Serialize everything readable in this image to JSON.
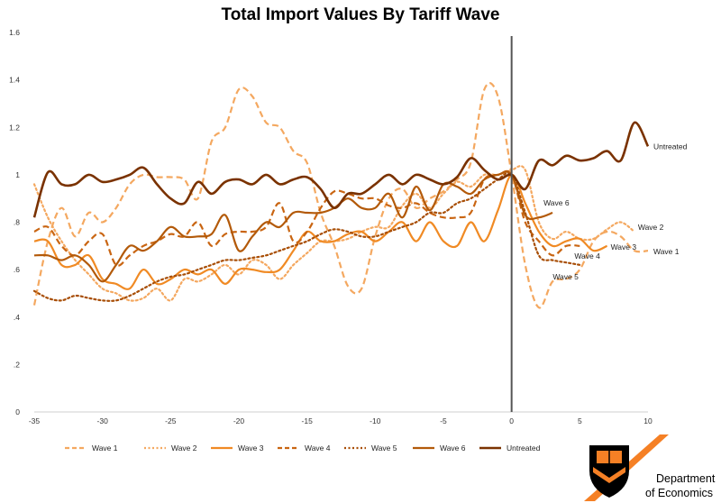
{
  "chart_data": {
    "type": "line",
    "title": "Total Import Values By Tariff Wave",
    "xlabel": "",
    "ylabel": "",
    "xlim": [
      -35,
      10
    ],
    "ylim": [
      0,
      1.6
    ],
    "xticks": [
      -35,
      -30,
      -25,
      -20,
      -15,
      -10,
      -5,
      0,
      5,
      10
    ],
    "yticks": [
      0,
      0.2,
      0.4,
      0.6,
      0.8,
      1,
      1.2,
      1.4,
      1.6
    ],
    "grid": false,
    "legend_position": "bottom",
    "vertical_marker_x": 0,
    "series": [
      {
        "name": "Wave 1",
        "color": "#f4a860",
        "dash": "dashed",
        "width": 2.2,
        "end_label": "Wave 1",
        "x": [
          -35,
          -34,
          -33,
          -32,
          -31,
          -30,
          -29,
          -28,
          -27,
          -26,
          -25,
          -24,
          -23,
          -22,
          -21,
          -20,
          -19,
          -18,
          -17,
          -16,
          -15,
          -14,
          -13,
          -12,
          -11,
          -10,
          -9,
          -8,
          -7,
          -6,
          -5,
          -4,
          -3,
          -2,
          -1,
          0,
          1,
          2,
          3,
          4,
          5,
          6,
          7,
          8,
          9,
          10
        ],
        "y": [
          0.45,
          0.72,
          0.86,
          0.74,
          0.84,
          0.8,
          0.86,
          0.96,
          1.0,
          0.99,
          0.99,
          0.98,
          0.9,
          1.14,
          1.2,
          1.36,
          1.33,
          1.22,
          1.2,
          1.1,
          1.05,
          0.84,
          0.7,
          0.53,
          0.52,
          0.74,
          0.9,
          0.94,
          0.86,
          0.9,
          0.93,
          0.98,
          1.05,
          1.36,
          1.33,
          1.0,
          0.62,
          0.44,
          0.55,
          0.56,
          0.6,
          0.72,
          0.76,
          0.74,
          0.68,
          0.68
        ]
      },
      {
        "name": "Wave 2",
        "color": "#f4a860",
        "dash": "dotted",
        "width": 2.2,
        "end_label": "Wave 2",
        "x": [
          -35,
          -34,
          -33,
          -32,
          -31,
          -30,
          -29,
          -28,
          -27,
          -26,
          -25,
          -24,
          -23,
          -22,
          -21,
          -20,
          -19,
          -18,
          -17,
          -16,
          -15,
          -14,
          -13,
          -12,
          -11,
          -10,
          -9,
          -8,
          -7,
          -6,
          -5,
          -4,
          -3,
          -2,
          -1,
          0,
          1,
          2,
          3,
          4,
          5,
          6,
          7,
          8,
          9
        ],
        "y": [
          0.96,
          0.82,
          0.72,
          0.64,
          0.58,
          0.52,
          0.5,
          0.47,
          0.48,
          0.52,
          0.47,
          0.56,
          0.55,
          0.58,
          0.62,
          0.58,
          0.64,
          0.62,
          0.56,
          0.62,
          0.67,
          0.72,
          0.72,
          0.73,
          0.76,
          0.78,
          0.78,
          0.87,
          0.92,
          0.86,
          0.92,
          0.97,
          0.95,
          1.0,
          1.0,
          1.02,
          1.02,
          0.8,
          0.73,
          0.76,
          0.73,
          0.73,
          0.77,
          0.8,
          0.76
        ]
      },
      {
        "name": "Wave 3",
        "color": "#f08a24",
        "dash": "solid",
        "width": 2.2,
        "end_label": "Wave 3",
        "x": [
          -35,
          -34,
          -33,
          -32,
          -31,
          -30,
          -29,
          -28,
          -27,
          -26,
          -25,
          -24,
          -23,
          -22,
          -21,
          -20,
          -19,
          -18,
          -17,
          -16,
          -15,
          -14,
          -13,
          -12,
          -11,
          -10,
          -9,
          -8,
          -7,
          -6,
          -5,
          -4,
          -3,
          -2,
          -1,
          0,
          1,
          2,
          3,
          4,
          5,
          6,
          7
        ],
        "y": [
          0.72,
          0.72,
          0.62,
          0.62,
          0.66,
          0.56,
          0.54,
          0.52,
          0.6,
          0.54,
          0.56,
          0.6,
          0.58,
          0.6,
          0.54,
          0.6,
          0.6,
          0.59,
          0.6,
          0.68,
          0.76,
          0.72,
          0.72,
          0.75,
          0.76,
          0.72,
          0.76,
          0.8,
          0.72,
          0.8,
          0.72,
          0.7,
          0.8,
          0.72,
          0.85,
          1.0,
          0.88,
          0.76,
          0.7,
          0.72,
          0.73,
          0.68,
          0.7
        ]
      },
      {
        "name": "Wave 4",
        "color": "#c96512",
        "dash": "dashed",
        "width": 2.2,
        "end_label": "Wave 4",
        "x": [
          -35,
          -34,
          -33,
          -32,
          -31,
          -30,
          -29,
          -28,
          -27,
          -26,
          -25,
          -24,
          -23,
          -22,
          -21,
          -20,
          -19,
          -18,
          -17,
          -16,
          -15,
          -14,
          -13,
          -12,
          -11,
          -10,
          -9,
          -8,
          -7,
          -6,
          -5,
          -4,
          -3,
          -2,
          -1,
          0,
          1,
          2,
          3,
          4,
          5
        ],
        "y": [
          0.76,
          0.78,
          0.7,
          0.66,
          0.72,
          0.75,
          0.62,
          0.66,
          0.7,
          0.72,
          0.75,
          0.74,
          0.8,
          0.7,
          0.75,
          0.76,
          0.76,
          0.78,
          0.88,
          0.72,
          0.76,
          0.86,
          0.93,
          0.92,
          0.9,
          0.9,
          0.87,
          0.86,
          0.88,
          0.84,
          0.82,
          0.82,
          0.84,
          0.98,
          1.0,
          1.0,
          0.8,
          0.72,
          0.66,
          0.7,
          0.7
        ]
      },
      {
        "name": "Wave 5",
        "color": "#a84e06",
        "dash": "dotted",
        "width": 2.2,
        "end_label": "Wave 5",
        "x": [
          -35,
          -34,
          -33,
          -32,
          -31,
          -30,
          -29,
          -28,
          -27,
          -26,
          -25,
          -24,
          -23,
          -22,
          -21,
          -20,
          -19,
          -18,
          -17,
          -16,
          -15,
          -14,
          -13,
          -12,
          -11,
          -10,
          -9,
          -8,
          -7,
          -6,
          -5,
          -4,
          -3,
          -2,
          -1,
          0,
          1,
          2,
          3,
          4,
          5
        ],
        "y": [
          0.51,
          0.48,
          0.47,
          0.49,
          0.48,
          0.47,
          0.47,
          0.49,
          0.52,
          0.55,
          0.57,
          0.58,
          0.6,
          0.62,
          0.64,
          0.64,
          0.65,
          0.66,
          0.68,
          0.7,
          0.72,
          0.75,
          0.77,
          0.76,
          0.74,
          0.74,
          0.76,
          0.78,
          0.8,
          0.84,
          0.84,
          0.88,
          0.9,
          0.94,
          0.98,
          1.0,
          0.84,
          0.66,
          0.64,
          0.63,
          0.62
        ]
      },
      {
        "name": "Wave 6",
        "color": "#b35a0a",
        "dash": "solid",
        "width": 2.2,
        "end_label": "Wave 6",
        "x": [
          -35,
          -34,
          -33,
          -32,
          -31,
          -30,
          -29,
          -28,
          -27,
          -26,
          -25,
          -24,
          -23,
          -22,
          -21,
          -20,
          -19,
          -18,
          -17,
          -16,
          -15,
          -14,
          -13,
          -12,
          -11,
          -10,
          -9,
          -8,
          -7,
          -6,
          -5,
          -4,
          -3,
          -2,
          -1,
          0,
          1,
          2,
          3
        ],
        "y": [
          0.66,
          0.66,
          0.64,
          0.66,
          0.62,
          0.55,
          0.62,
          0.7,
          0.68,
          0.72,
          0.78,
          0.74,
          0.74,
          0.75,
          0.83,
          0.68,
          0.74,
          0.8,
          0.78,
          0.84,
          0.84,
          0.84,
          0.86,
          0.9,
          0.86,
          0.86,
          0.92,
          0.82,
          0.95,
          0.85,
          0.96,
          0.95,
          0.92,
          0.98,
          1.0,
          1.0,
          0.83,
          0.82,
          0.84
        ]
      },
      {
        "name": "Untreated",
        "color": "#7a3200",
        "dash": "solid",
        "width": 2.6,
        "end_label": "Untreated",
        "x": [
          -35,
          -34,
          -33,
          -32,
          -31,
          -30,
          -29,
          -28,
          -27,
          -26,
          -25,
          -24,
          -23,
          -22,
          -21,
          -20,
          -19,
          -18,
          -17,
          -16,
          -15,
          -14,
          -13,
          -12,
          -11,
          -10,
          -9,
          -8,
          -7,
          -6,
          -5,
          -4,
          -3,
          -2,
          -1,
          0,
          1,
          2,
          3,
          4,
          5,
          6,
          7,
          8,
          9,
          10
        ],
        "y": [
          0.82,
          1.01,
          0.96,
          0.96,
          1.0,
          0.97,
          0.98,
          1.0,
          1.03,
          0.96,
          0.9,
          0.88,
          0.97,
          0.92,
          0.97,
          0.98,
          0.96,
          1.0,
          0.96,
          0.98,
          0.99,
          0.94,
          0.86,
          0.92,
          0.92,
          0.96,
          1.0,
          0.96,
          1.0,
          0.98,
          0.96,
          0.99,
          1.07,
          1.02,
          0.98,
          1.0,
          0.94,
          1.06,
          1.04,
          1.08,
          1.06,
          1.07,
          1.1,
          1.06,
          1.22,
          1.12
        ]
      }
    ]
  },
  "logo": {
    "line1": "Department",
    "line2": "of Economics",
    "accent_color": "#f58025",
    "shield_color": "#000000"
  }
}
